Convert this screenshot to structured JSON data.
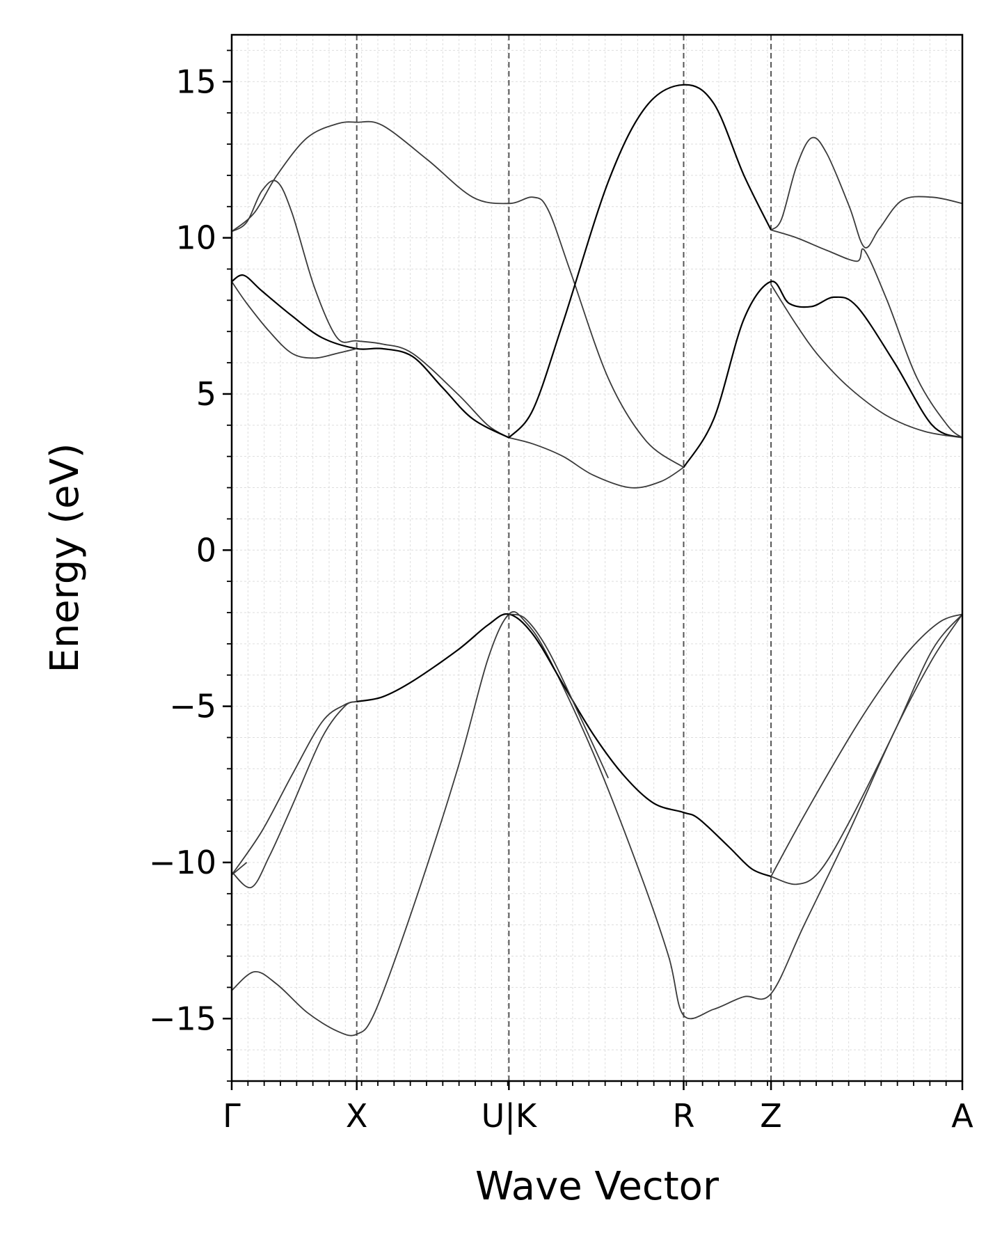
{
  "chart_data": {
    "type": "line",
    "xlabel": "Wave Vector",
    "ylabel": "Energy (eV)",
    "ylim": [
      -17,
      16.5
    ],
    "yticks": [
      15,
      10,
      5,
      0,
      -5,
      -10,
      -15
    ],
    "ytick_labels": [
      "15",
      "10",
      "5",
      "0",
      "−5",
      "−10",
      "−15"
    ],
    "xlim": [
      0,
      4.85
    ],
    "kpoints": [
      {
        "label": "Γ",
        "x": 0
      },
      {
        "label": "X",
        "x": 0.83
      },
      {
        "label": "U|K",
        "x": 1.84
      },
      {
        "label": "R",
        "x": 3.0
      },
      {
        "label": "Z",
        "x": 3.58
      },
      {
        "label": "A",
        "x": 4.85
      }
    ],
    "grid": true,
    "colors": {
      "bands": "#3a3a3a",
      "bands_dark": "#000000",
      "kpoint_lines": "#555555",
      "grid": "#dddddd"
    },
    "series": [
      {
        "values": [
          [
            0,
            -14.1
          ],
          [
            0.15,
            -13.5
          ],
          [
            0.3,
            -13.9
          ],
          [
            0.5,
            -14.8
          ],
          [
            0.7,
            -15.4
          ],
          [
            0.83,
            -15.5
          ],
          [
            0.95,
            -14.8
          ],
          [
            1.2,
            -11.5
          ],
          [
            1.5,
            -7.0
          ],
          [
            1.7,
            -3.5
          ],
          [
            1.84,
            -2.05
          ],
          [
            1.95,
            -2.3
          ],
          [
            2.1,
            -3.4
          ],
          [
            2.4,
            -6.5
          ],
          [
            2.7,
            -10.2
          ],
          [
            2.9,
            -13.0
          ],
          [
            3.0,
            -14.9
          ],
          [
            3.2,
            -14.7
          ],
          [
            3.4,
            -14.3
          ],
          [
            3.58,
            -14.2
          ],
          [
            3.8,
            -12.0
          ],
          [
            4.1,
            -9.0
          ],
          [
            4.4,
            -5.8
          ],
          [
            4.65,
            -3.5
          ],
          [
            4.85,
            -2.05
          ]
        ]
      },
      {
        "values": [
          [
            0,
            -10.3
          ],
          [
            0.13,
            -10.8
          ],
          [
            0.25,
            -9.8
          ],
          [
            0.4,
            -8.2
          ],
          [
            0.6,
            -6.0
          ],
          [
            0.75,
            -5.0
          ],
          [
            0.83,
            -4.85
          ]
        ]
      },
      {
        "values": [
          [
            0,
            -10.4
          ],
          [
            0.2,
            -9.0
          ],
          [
            0.4,
            -7.2
          ],
          [
            0.6,
            -5.5
          ],
          [
            0.75,
            -4.95
          ],
          [
            0.83,
            -4.85
          ]
        ]
      },
      {
        "values": [
          [
            0.83,
            -4.85
          ],
          [
            1.0,
            -4.7
          ],
          [
            1.2,
            -4.2
          ],
          [
            1.5,
            -3.2
          ],
          [
            1.7,
            -2.4
          ],
          [
            1.84,
            -2.05
          ],
          [
            2.0,
            -2.7
          ],
          [
            2.2,
            -4.3
          ],
          [
            2.4,
            -5.9
          ],
          [
            2.6,
            -7.2
          ],
          [
            2.8,
            -8.1
          ],
          [
            3.0,
            -8.4
          ],
          [
            3.1,
            -8.6
          ],
          [
            3.3,
            -9.5
          ],
          [
            3.45,
            -10.2
          ],
          [
            3.58,
            -10.45
          ]
        ],
        "dark": true
      },
      {
        "values": [
          [
            1.84,
            -2.05
          ],
          [
            1.95,
            -2.2
          ],
          [
            2.1,
            -3.2
          ],
          [
            2.3,
            -5.2
          ],
          [
            2.5,
            -7.3
          ]
        ]
      },
      {
        "values": [
          [
            3.58,
            -10.45
          ],
          [
            3.75,
            -10.7
          ],
          [
            3.9,
            -10.3
          ],
          [
            4.1,
            -8.7
          ],
          [
            4.4,
            -5.8
          ],
          [
            4.65,
            -3.2
          ],
          [
            4.85,
            -2.05
          ]
        ]
      },
      {
        "values": [
          [
            3.58,
            -10.45
          ],
          [
            3.8,
            -8.5
          ],
          [
            4.1,
            -6.0
          ],
          [
            4.3,
            -4.5
          ],
          [
            4.5,
            -3.2
          ],
          [
            4.7,
            -2.3
          ],
          [
            4.85,
            -2.05
          ]
        ]
      },
      {
        "values": [
          [
            0,
            -10.4
          ],
          [
            0.1,
            -10.0
          ]
        ]
      },
      {
        "values": [
          [
            0,
            10.2
          ],
          [
            0.15,
            10.8
          ],
          [
            0.3,
            12.0
          ],
          [
            0.5,
            13.2
          ],
          [
            0.7,
            13.65
          ],
          [
            0.83,
            13.7
          ],
          [
            1.0,
            13.6
          ],
          [
            1.3,
            12.5
          ],
          [
            1.6,
            11.3
          ],
          [
            1.84,
            11.1
          ],
          [
            2.0,
            11.3
          ],
          [
            2.1,
            10.9
          ],
          [
            2.25,
            8.9
          ],
          [
            2.5,
            5.5
          ],
          [
            2.75,
            3.5
          ],
          [
            3.0,
            2.65
          ]
        ]
      },
      {
        "values": [
          [
            0,
            10.2
          ],
          [
            0.1,
            10.5
          ],
          [
            0.2,
            11.5
          ],
          [
            0.3,
            11.8
          ],
          [
            0.4,
            10.8
          ],
          [
            0.55,
            8.4
          ],
          [
            0.7,
            6.8
          ],
          [
            0.83,
            6.7
          ],
          [
            1.0,
            6.6
          ],
          [
            1.2,
            6.3
          ],
          [
            1.5,
            5.0
          ],
          [
            1.7,
            4.0
          ],
          [
            1.84,
            3.6
          ]
        ]
      },
      {
        "values": [
          [
            0,
            8.6
          ],
          [
            0.08,
            8.8
          ],
          [
            0.2,
            8.3
          ],
          [
            0.4,
            7.5
          ],
          [
            0.6,
            6.8
          ],
          [
            0.83,
            6.45
          ],
          [
            1.0,
            6.45
          ],
          [
            1.2,
            6.2
          ],
          [
            1.4,
            5.2
          ],
          [
            1.6,
            4.2
          ],
          [
            1.84,
            3.6
          ]
        ],
        "dark": true
      },
      {
        "values": [
          [
            0,
            8.6
          ],
          [
            0.1,
            7.9
          ],
          [
            0.25,
            7.0
          ],
          [
            0.4,
            6.3
          ],
          [
            0.55,
            6.15
          ],
          [
            0.7,
            6.3
          ],
          [
            0.83,
            6.45
          ]
        ]
      },
      {
        "values": [
          [
            1.84,
            3.6
          ],
          [
            2.0,
            3.4
          ],
          [
            2.2,
            3.0
          ],
          [
            2.4,
            2.4
          ],
          [
            2.65,
            2.0
          ],
          [
            2.85,
            2.2
          ],
          [
            3.0,
            2.65
          ]
        ]
      },
      {
        "values": [
          [
            1.84,
            3.6
          ],
          [
            2.0,
            4.5
          ],
          [
            2.2,
            7.3
          ],
          [
            2.5,
            11.8
          ],
          [
            2.75,
            14.2
          ],
          [
            3.0,
            14.9
          ],
          [
            3.2,
            14.3
          ],
          [
            3.4,
            12.0
          ],
          [
            3.58,
            10.25
          ]
        ],
        "dark": true
      },
      {
        "values": [
          [
            3.0,
            2.65
          ],
          [
            3.2,
            4.2
          ],
          [
            3.4,
            7.4
          ],
          [
            3.58,
            8.6
          ],
          [
            3.7,
            7.9
          ],
          [
            3.85,
            7.8
          ],
          [
            4.0,
            8.1
          ],
          [
            4.15,
            7.8
          ],
          [
            4.4,
            6.0
          ],
          [
            4.65,
            4.0
          ],
          [
            4.85,
            3.6
          ]
        ],
        "dark": true
      },
      {
        "values": [
          [
            3.58,
            8.5
          ],
          [
            3.75,
            7.2
          ],
          [
            3.9,
            6.2
          ],
          [
            4.1,
            5.2
          ],
          [
            4.35,
            4.3
          ],
          [
            4.6,
            3.8
          ],
          [
            4.85,
            3.6
          ]
        ]
      },
      {
        "values": [
          [
            3.58,
            10.25
          ],
          [
            3.65,
            10.6
          ],
          [
            3.75,
            12.3
          ],
          [
            3.85,
            13.2
          ],
          [
            3.95,
            12.7
          ],
          [
            4.1,
            11.0
          ],
          [
            4.2,
            9.7
          ],
          [
            4.3,
            10.3
          ],
          [
            4.45,
            11.2
          ],
          [
            4.65,
            11.3
          ],
          [
            4.85,
            11.1
          ]
        ]
      },
      {
        "values": [
          [
            3.58,
            10.25
          ],
          [
            3.75,
            10.0
          ],
          [
            3.95,
            9.6
          ],
          [
            4.15,
            9.25
          ],
          [
            4.2,
            9.6
          ],
          [
            4.35,
            8.0
          ],
          [
            4.55,
            5.5
          ],
          [
            4.75,
            4.0
          ],
          [
            4.85,
            3.6
          ]
        ]
      }
    ]
  }
}
